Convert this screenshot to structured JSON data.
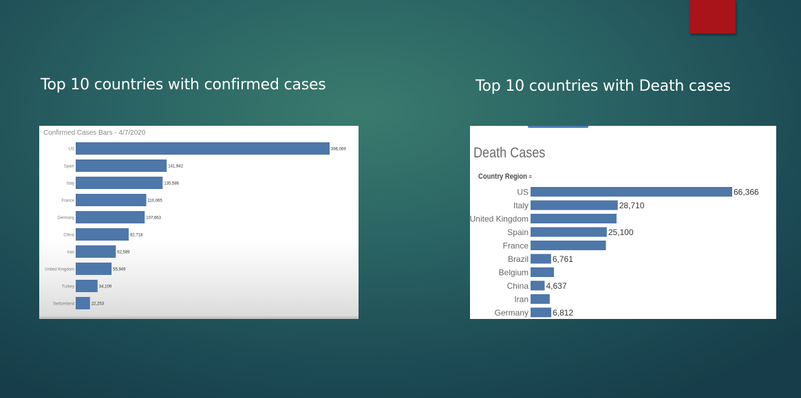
{
  "slide": {
    "heading_left": "Top 10 countries with confirmed cases",
    "heading_right": "Top 10 countries with Death cases",
    "accent_color": "#a8141a"
  },
  "chart_data": [
    {
      "type": "bar",
      "orientation": "horizontal",
      "title": "Confirmed Cases Bars - 4/7/2020",
      "categories": [
        "US",
        "Spain",
        "Italy",
        "France",
        "Germany",
        "China",
        "Iran",
        "United Kingdom",
        "Turkey",
        "Switzerland"
      ],
      "values": [
        396069,
        141942,
        135586,
        110065,
        107663,
        82718,
        62589,
        55949,
        34109,
        22253
      ],
      "value_labels": [
        "396,069",
        "141,942",
        "135,586",
        "110,065",
        "107,663",
        "82,718",
        "62,589",
        "55,949",
        "34,109",
        "22,253"
      ],
      "bar_color": "#4e77aa",
      "grid": false,
      "legend": "none"
    },
    {
      "type": "bar",
      "orientation": "horizontal",
      "title": "Death Cases",
      "category_header": "Country Region",
      "categories": [
        "US",
        "Italy",
        "United Kingdom",
        "Spain",
        "France",
        "Brazil",
        "Belgium",
        "China",
        "Iran",
        "Germany"
      ],
      "values": [
        66366,
        28710,
        28300,
        25100,
        24800,
        6761,
        7700,
        4637,
        6300,
        6812
      ],
      "value_labels": [
        "66,366",
        "28,710",
        "",
        "25,100",
        "",
        "6,761",
        "",
        "4,637",
        "",
        "6,812"
      ],
      "bar_color": "#4e77aa",
      "grid": false,
      "legend": "none"
    }
  ]
}
